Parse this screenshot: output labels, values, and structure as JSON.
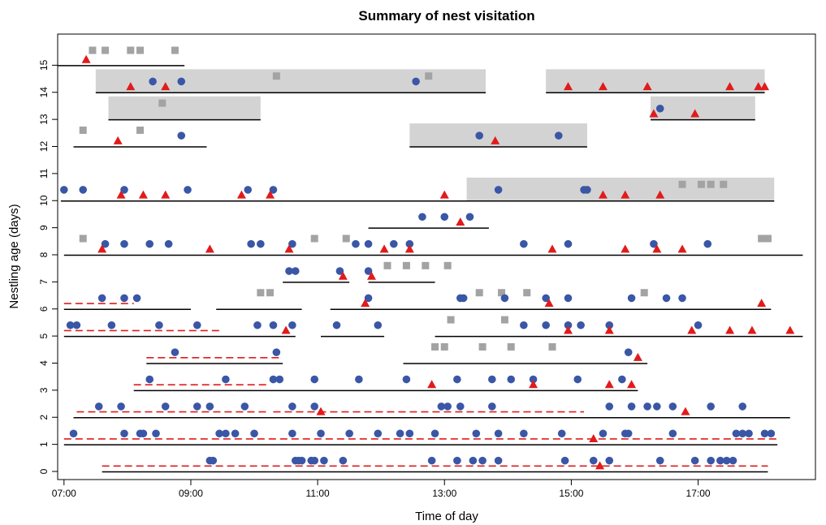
{
  "chart_data": {
    "type": "scatter",
    "title": "Summary of nest visitation",
    "xlabel": "Time of day",
    "ylabel": "Nestling age (days)",
    "xlim": [
      6.9,
      18.85
    ],
    "ylim": [
      -0.3,
      16.15
    ],
    "x_ticks": [
      {
        "value": 7,
        "label": "07:00"
      },
      {
        "value": 9,
        "label": "09:00"
      },
      {
        "value": 11,
        "label": "11:00"
      },
      {
        "value": 13,
        "label": "13:00"
      },
      {
        "value": 15,
        "label": "15:00"
      },
      {
        "value": 17,
        "label": "17:00"
      }
    ],
    "y_ticks": [
      0,
      1,
      2,
      3,
      4,
      5,
      6,
      7,
      8,
      9,
      10,
      11,
      12,
      13,
      14,
      15
    ],
    "colors": {
      "circle": "#3a56a6",
      "triangle": "#e11b1b",
      "square": "#a3a3a3",
      "shade": "#d3d3d3",
      "dashed": "#e11b1b",
      "line": "#000000"
    },
    "shaded_periods": [
      {
        "day": 14,
        "x1": 7.5,
        "x2": 13.65
      },
      {
        "day": 14,
        "x1": 14.6,
        "x2": 18.05
      },
      {
        "day": 13,
        "x1": 7.7,
        "x2": 10.1
      },
      {
        "day": 13,
        "x1": 16.25,
        "x2": 17.9
      },
      {
        "day": 12,
        "x1": 12.45,
        "x2": 15.25
      },
      {
        "day": 10,
        "x1": 13.35,
        "x2": 18.2
      }
    ],
    "observation_lines": [
      {
        "day": 15,
        "x1": 6.9,
        "x2": 8.9
      },
      {
        "day": 14,
        "x1": 7.5,
        "x2": 13.65
      },
      {
        "day": 14,
        "x1": 14.6,
        "x2": 18.05
      },
      {
        "day": 13,
        "x1": 7.7,
        "x2": 10.1
      },
      {
        "day": 13,
        "x1": 16.25,
        "x2": 17.9
      },
      {
        "day": 12,
        "x1": 7.15,
        "x2": 9.25
      },
      {
        "day": 12,
        "x1": 12.45,
        "x2": 15.25
      },
      {
        "day": 10,
        "x1": 6.95,
        "x2": 18.2
      },
      {
        "day": 9,
        "x1": 11.8,
        "x2": 13.7
      },
      {
        "day": 8,
        "x1": 7.0,
        "x2": 18.65
      },
      {
        "day": 7,
        "x1": 10.45,
        "x2": 11.5
      },
      {
        "day": 7,
        "x1": 11.8,
        "x2": 12.85
      },
      {
        "day": 6,
        "x1": 7.0,
        "x2": 9.0
      },
      {
        "day": 6,
        "x1": 9.4,
        "x2": 10.75
      },
      {
        "day": 6,
        "x1": 11.2,
        "x2": 18.15
      },
      {
        "day": 5,
        "x1": 7.0,
        "x2": 10.65
      },
      {
        "day": 5,
        "x1": 11.05,
        "x2": 12.05
      },
      {
        "day": 5,
        "x1": 12.85,
        "x2": 18.65
      },
      {
        "day": 4,
        "x1": 8.3,
        "x2": 10.45
      },
      {
        "day": 4,
        "x1": 12.35,
        "x2": 16.2
      },
      {
        "day": 3,
        "x1": 8.1,
        "x2": 16.05
      },
      {
        "day": 2,
        "x1": 7.15,
        "x2": 18.45
      },
      {
        "day": 1,
        "x1": 7.0,
        "x2": 18.25
      },
      {
        "day": 0,
        "x1": 7.6,
        "x2": 18.1
      }
    ],
    "dashed_lines": [
      {
        "day": 6,
        "x1": 7.0,
        "x2": 8.1
      },
      {
        "day": 5,
        "x1": 7.0,
        "x2": 9.45
      },
      {
        "day": 4,
        "x1": 8.3,
        "x2": 10.4
      },
      {
        "day": 3,
        "x1": 8.1,
        "x2": 10.2
      },
      {
        "day": 2,
        "x1": 7.2,
        "x2": 10.2
      },
      {
        "day": 2,
        "x1": 10.3,
        "x2": 15.2
      },
      {
        "day": 1,
        "x1": 7.0,
        "x2": 18.25
      },
      {
        "day": 0,
        "x1": 7.6,
        "x2": 18.1
      }
    ],
    "squares": [
      {
        "x": 7.45,
        "y": 15.55
      },
      {
        "x": 7.65,
        "y": 15.55
      },
      {
        "x": 8.05,
        "y": 15.55
      },
      {
        "x": 8.2,
        "y": 15.55
      },
      {
        "x": 8.75,
        "y": 15.55
      },
      {
        "x": 10.35,
        "y": 14.6
      },
      {
        "x": 12.75,
        "y": 14.6
      },
      {
        "x": 8.55,
        "y": 13.6
      },
      {
        "x": 7.3,
        "y": 12.6
      },
      {
        "x": 8.2,
        "y": 12.6
      },
      {
        "x": 16.75,
        "y": 10.6
      },
      {
        "x": 17.05,
        "y": 10.6
      },
      {
        "x": 17.2,
        "y": 10.6
      },
      {
        "x": 17.4,
        "y": 10.6
      },
      {
        "x": 7.3,
        "y": 8.6
      },
      {
        "x": 10.95,
        "y": 8.6
      },
      {
        "x": 11.45,
        "y": 8.6
      },
      {
        "x": 18.0,
        "y": 8.6
      },
      {
        "x": 18.1,
        "y": 8.6
      },
      {
        "x": 12.1,
        "y": 7.6
      },
      {
        "x": 12.4,
        "y": 7.6
      },
      {
        "x": 12.7,
        "y": 7.6
      },
      {
        "x": 13.05,
        "y": 7.6
      },
      {
        "x": 10.1,
        "y": 6.6
      },
      {
        "x": 10.25,
        "y": 6.6
      },
      {
        "x": 13.55,
        "y": 6.6
      },
      {
        "x": 13.9,
        "y": 6.6
      },
      {
        "x": 14.3,
        "y": 6.6
      },
      {
        "x": 16.15,
        "y": 6.6
      },
      {
        "x": 13.1,
        "y": 5.6
      },
      {
        "x": 13.95,
        "y": 5.6
      },
      {
        "x": 12.85,
        "y": 4.6
      },
      {
        "x": 13.0,
        "y": 4.6
      },
      {
        "x": 13.6,
        "y": 4.6
      },
      {
        "x": 14.05,
        "y": 4.6
      },
      {
        "x": 14.7,
        "y": 4.6
      }
    ],
    "triangles": [
      {
        "x": 7.35,
        "y": 15.2
      },
      {
        "x": 8.05,
        "y": 14.2
      },
      {
        "x": 8.6,
        "y": 14.2
      },
      {
        "x": 14.95,
        "y": 14.2
      },
      {
        "x": 15.5,
        "y": 14.2
      },
      {
        "x": 16.2,
        "y": 14.2
      },
      {
        "x": 17.5,
        "y": 14.2
      },
      {
        "x": 17.95,
        "y": 14.2
      },
      {
        "x": 18.05,
        "y": 14.2
      },
      {
        "x": 16.3,
        "y": 13.2
      },
      {
        "x": 16.95,
        "y": 13.2
      },
      {
        "x": 7.85,
        "y": 12.2
      },
      {
        "x": 13.8,
        "y": 12.2
      },
      {
        "x": 7.9,
        "y": 10.2
      },
      {
        "x": 8.25,
        "y": 10.2
      },
      {
        "x": 8.6,
        "y": 10.2
      },
      {
        "x": 9.8,
        "y": 10.2
      },
      {
        "x": 10.25,
        "y": 10.2
      },
      {
        "x": 13.0,
        "y": 10.2
      },
      {
        "x": 15.5,
        "y": 10.2
      },
      {
        "x": 15.85,
        "y": 10.2
      },
      {
        "x": 16.4,
        "y": 10.2
      },
      {
        "x": 13.25,
        "y": 9.2
      },
      {
        "x": 7.6,
        "y": 8.2
      },
      {
        "x": 9.3,
        "y": 8.2
      },
      {
        "x": 10.55,
        "y": 8.2
      },
      {
        "x": 12.05,
        "y": 8.2
      },
      {
        "x": 12.45,
        "y": 8.2
      },
      {
        "x": 14.7,
        "y": 8.2
      },
      {
        "x": 15.85,
        "y": 8.2
      },
      {
        "x": 16.35,
        "y": 8.2
      },
      {
        "x": 16.75,
        "y": 8.2
      },
      {
        "x": 11.4,
        "y": 7.2
      },
      {
        "x": 11.85,
        "y": 7.2
      },
      {
        "x": 11.75,
        "y": 6.2
      },
      {
        "x": 14.65,
        "y": 6.2
      },
      {
        "x": 18.0,
        "y": 6.2
      },
      {
        "x": 10.5,
        "y": 5.2
      },
      {
        "x": 14.95,
        "y": 5.2
      },
      {
        "x": 15.6,
        "y": 5.2
      },
      {
        "x": 16.9,
        "y": 5.2
      },
      {
        "x": 17.5,
        "y": 5.2
      },
      {
        "x": 17.85,
        "y": 5.2
      },
      {
        "x": 18.45,
        "y": 5.2
      },
      {
        "x": 16.05,
        "y": 4.2
      },
      {
        "x": 12.8,
        "y": 3.2
      },
      {
        "x": 14.4,
        "y": 3.2
      },
      {
        "x": 15.6,
        "y": 3.2
      },
      {
        "x": 15.95,
        "y": 3.2
      },
      {
        "x": 11.05,
        "y": 2.2
      },
      {
        "x": 16.8,
        "y": 2.2
      },
      {
        "x": 15.35,
        "y": 1.2
      },
      {
        "x": 15.45,
        "y": 0.2
      }
    ],
    "circles": [
      {
        "x": 8.4,
        "y": 14.4
      },
      {
        "x": 8.85,
        "y": 14.4
      },
      {
        "x": 12.55,
        "y": 14.4
      },
      {
        "x": 16.4,
        "y": 13.4
      },
      {
        "x": 8.85,
        "y": 12.4
      },
      {
        "x": 13.55,
        "y": 12.4
      },
      {
        "x": 14.8,
        "y": 12.4
      },
      {
        "x": 7.0,
        "y": 10.4
      },
      {
        "x": 7.3,
        "y": 10.4
      },
      {
        "x": 7.95,
        "y": 10.4
      },
      {
        "x": 8.95,
        "y": 10.4
      },
      {
        "x": 9.9,
        "y": 10.4
      },
      {
        "x": 10.3,
        "y": 10.4
      },
      {
        "x": 13.85,
        "y": 10.4
      },
      {
        "x": 15.2,
        "y": 10.4
      },
      {
        "x": 15.25,
        "y": 10.4
      },
      {
        "x": 12.65,
        "y": 9.4
      },
      {
        "x": 13.0,
        "y": 9.4
      },
      {
        "x": 13.4,
        "y": 9.4
      },
      {
        "x": 7.65,
        "y": 8.4
      },
      {
        "x": 7.95,
        "y": 8.4
      },
      {
        "x": 8.35,
        "y": 8.4
      },
      {
        "x": 8.65,
        "y": 8.4
      },
      {
        "x": 9.95,
        "y": 8.4
      },
      {
        "x": 10.1,
        "y": 8.4
      },
      {
        "x": 10.6,
        "y": 8.4
      },
      {
        "x": 11.6,
        "y": 8.4
      },
      {
        "x": 11.8,
        "y": 8.4
      },
      {
        "x": 12.2,
        "y": 8.4
      },
      {
        "x": 12.45,
        "y": 8.4
      },
      {
        "x": 14.25,
        "y": 8.4
      },
      {
        "x": 14.95,
        "y": 8.4
      },
      {
        "x": 16.3,
        "y": 8.4
      },
      {
        "x": 17.15,
        "y": 8.4
      },
      {
        "x": 10.55,
        "y": 7.4
      },
      {
        "x": 10.65,
        "y": 7.4
      },
      {
        "x": 11.35,
        "y": 7.4
      },
      {
        "x": 11.8,
        "y": 7.4
      },
      {
        "x": 7.6,
        "y": 6.4
      },
      {
        "x": 7.95,
        "y": 6.4
      },
      {
        "x": 8.15,
        "y": 6.4
      },
      {
        "x": 11.8,
        "y": 6.4
      },
      {
        "x": 13.25,
        "y": 6.4
      },
      {
        "x": 13.3,
        "y": 6.4
      },
      {
        "x": 13.95,
        "y": 6.4
      },
      {
        "x": 14.6,
        "y": 6.4
      },
      {
        "x": 14.95,
        "y": 6.4
      },
      {
        "x": 15.95,
        "y": 6.4
      },
      {
        "x": 16.5,
        "y": 6.4
      },
      {
        "x": 16.75,
        "y": 6.4
      },
      {
        "x": 7.1,
        "y": 5.4
      },
      {
        "x": 7.2,
        "y": 5.4
      },
      {
        "x": 7.75,
        "y": 5.4
      },
      {
        "x": 8.5,
        "y": 5.4
      },
      {
        "x": 9.1,
        "y": 5.4
      },
      {
        "x": 10.05,
        "y": 5.4
      },
      {
        "x": 10.3,
        "y": 5.4
      },
      {
        "x": 10.6,
        "y": 5.4
      },
      {
        "x": 11.3,
        "y": 5.4
      },
      {
        "x": 11.95,
        "y": 5.4
      },
      {
        "x": 14.25,
        "y": 5.4
      },
      {
        "x": 14.6,
        "y": 5.4
      },
      {
        "x": 14.95,
        "y": 5.4
      },
      {
        "x": 15.15,
        "y": 5.4
      },
      {
        "x": 15.6,
        "y": 5.4
      },
      {
        "x": 17.0,
        "y": 5.4
      },
      {
        "x": 8.75,
        "y": 4.4
      },
      {
        "x": 10.35,
        "y": 4.4
      },
      {
        "x": 15.9,
        "y": 4.4
      },
      {
        "x": 8.35,
        "y": 3.4
      },
      {
        "x": 9.55,
        "y": 3.4
      },
      {
        "x": 10.3,
        "y": 3.4
      },
      {
        "x": 10.4,
        "y": 3.4
      },
      {
        "x": 10.95,
        "y": 3.4
      },
      {
        "x": 11.65,
        "y": 3.4
      },
      {
        "x": 12.4,
        "y": 3.4
      },
      {
        "x": 13.2,
        "y": 3.4
      },
      {
        "x": 13.75,
        "y": 3.4
      },
      {
        "x": 14.05,
        "y": 3.4
      },
      {
        "x": 14.4,
        "y": 3.4
      },
      {
        "x": 15.1,
        "y": 3.4
      },
      {
        "x": 15.8,
        "y": 3.4
      },
      {
        "x": 7.55,
        "y": 2.4
      },
      {
        "x": 7.9,
        "y": 2.4
      },
      {
        "x": 8.6,
        "y": 2.4
      },
      {
        "x": 9.1,
        "y": 2.4
      },
      {
        "x": 9.3,
        "y": 2.4
      },
      {
        "x": 9.85,
        "y": 2.4
      },
      {
        "x": 10.6,
        "y": 2.4
      },
      {
        "x": 10.95,
        "y": 2.4
      },
      {
        "x": 12.95,
        "y": 2.4
      },
      {
        "x": 13.05,
        "y": 2.4
      },
      {
        "x": 13.25,
        "y": 2.4
      },
      {
        "x": 13.75,
        "y": 2.4
      },
      {
        "x": 15.6,
        "y": 2.4
      },
      {
        "x": 15.95,
        "y": 2.4
      },
      {
        "x": 16.2,
        "y": 2.4
      },
      {
        "x": 16.35,
        "y": 2.4
      },
      {
        "x": 16.6,
        "y": 2.4
      },
      {
        "x": 17.2,
        "y": 2.4
      },
      {
        "x": 17.7,
        "y": 2.4
      },
      {
        "x": 7.15,
        "y": 1.4
      },
      {
        "x": 7.95,
        "y": 1.4
      },
      {
        "x": 8.2,
        "y": 1.4
      },
      {
        "x": 8.25,
        "y": 1.4
      },
      {
        "x": 8.45,
        "y": 1.4
      },
      {
        "x": 9.45,
        "y": 1.4
      },
      {
        "x": 9.55,
        "y": 1.4
      },
      {
        "x": 9.7,
        "y": 1.4
      },
      {
        "x": 10.0,
        "y": 1.4
      },
      {
        "x": 10.6,
        "y": 1.4
      },
      {
        "x": 11.05,
        "y": 1.4
      },
      {
        "x": 11.5,
        "y": 1.4
      },
      {
        "x": 11.95,
        "y": 1.4
      },
      {
        "x": 12.3,
        "y": 1.4
      },
      {
        "x": 12.45,
        "y": 1.4
      },
      {
        "x": 12.85,
        "y": 1.4
      },
      {
        "x": 13.5,
        "y": 1.4
      },
      {
        "x": 13.85,
        "y": 1.4
      },
      {
        "x": 14.25,
        "y": 1.4
      },
      {
        "x": 14.85,
        "y": 1.4
      },
      {
        "x": 15.5,
        "y": 1.4
      },
      {
        "x": 15.85,
        "y": 1.4
      },
      {
        "x": 15.9,
        "y": 1.4
      },
      {
        "x": 16.6,
        "y": 1.4
      },
      {
        "x": 17.6,
        "y": 1.4
      },
      {
        "x": 17.7,
        "y": 1.4
      },
      {
        "x": 17.8,
        "y": 1.4
      },
      {
        "x": 18.05,
        "y": 1.4
      },
      {
        "x": 18.15,
        "y": 1.4
      },
      {
        "x": 9.3,
        "y": 0.4
      },
      {
        "x": 9.35,
        "y": 0.4
      },
      {
        "x": 10.65,
        "y": 0.4
      },
      {
        "x": 10.7,
        "y": 0.4
      },
      {
        "x": 10.75,
        "y": 0.4
      },
      {
        "x": 10.9,
        "y": 0.4
      },
      {
        "x": 10.95,
        "y": 0.4
      },
      {
        "x": 11.1,
        "y": 0.4
      },
      {
        "x": 11.4,
        "y": 0.4
      },
      {
        "x": 12.8,
        "y": 0.4
      },
      {
        "x": 13.2,
        "y": 0.4
      },
      {
        "x": 13.45,
        "y": 0.4
      },
      {
        "x": 13.6,
        "y": 0.4
      },
      {
        "x": 13.85,
        "y": 0.4
      },
      {
        "x": 14.9,
        "y": 0.4
      },
      {
        "x": 15.35,
        "y": 0.4
      },
      {
        "x": 15.6,
        "y": 0.4
      },
      {
        "x": 16.4,
        "y": 0.4
      },
      {
        "x": 16.95,
        "y": 0.4
      },
      {
        "x": 17.2,
        "y": 0.4
      },
      {
        "x": 17.35,
        "y": 0.4
      },
      {
        "x": 17.45,
        "y": 0.4
      },
      {
        "x": 17.55,
        "y": 0.4
      }
    ]
  }
}
